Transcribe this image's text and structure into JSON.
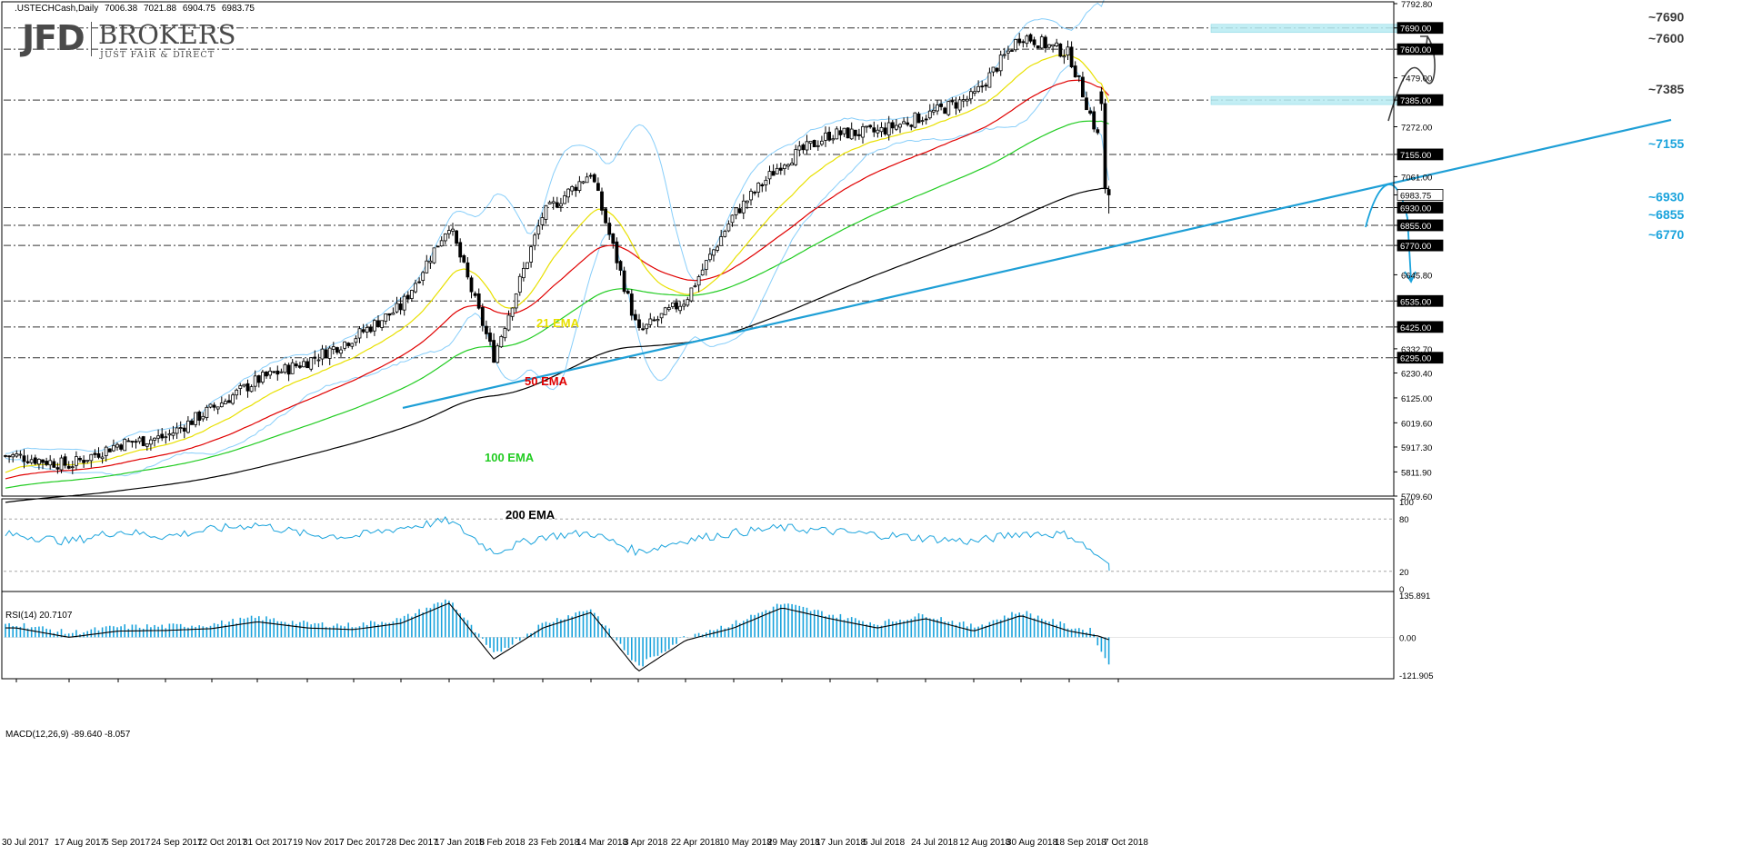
{
  "header": {
    "symbol": ".USTECHCash,Daily",
    "open": "7006.38",
    "high": "7021.88",
    "low": "6904.75",
    "close": "6983.75"
  },
  "logo": {
    "brand": "JFD",
    "brokers": "BROKERS",
    "tagline": "JUST FAIR & DIRECT"
  },
  "colors": {
    "ema21": "#e8e000",
    "ema50": "#e00000",
    "ema100": "#22cc22",
    "ema200": "#000000",
    "bollinger": "#87cefa",
    "trendline": "#1e9fd6",
    "cyan_label": "#1aa3dc",
    "box": "#b8ecf3"
  },
  "chart_data": [
    {
      "type": "candlestick",
      "title": ".USTECHCash,Daily",
      "ylim": [
        5709.6,
        7792.8
      ],
      "y_ticks": [
        "7792.80",
        "7690.00",
        "7600.00",
        "7479.00",
        "7385.00",
        "7272.00",
        "7155.00",
        "7061.00",
        "6983.75",
        "6930.00",
        "6855.00",
        "6770.00",
        "6645.80",
        "6535.00",
        "6425.00",
        "6332.70",
        "6295.00",
        "6230.40",
        "6125.00",
        "6019.60",
        "5917.30",
        "5811.90",
        "5709.60"
      ],
      "x_ticks": [
        "30 Jul 2017",
        "17 Aug 2017",
        "5 Sep 2017",
        "24 Sep 2017",
        "12 Oct 2017",
        "31 Oct 2017",
        "19 Nov 2017",
        "7 Dec 2017",
        "28 Dec 2017",
        "17 Jan 2018",
        "5 Feb 2018",
        "23 Feb 2018",
        "14 Mar 2018",
        "3 Apr 2018",
        "22 Apr 2018",
        "10 May 2018",
        "29 May 2018",
        "17 Jun 2018",
        "5 Jul 2018",
        "24 Jul 2018",
        "12 Aug 2018",
        "30 Aug 2018",
        "18 Sep 2018",
        "7 Oct 2018"
      ],
      "price_path": [
        [
          "30 Jul 2017",
          5880
        ],
        [
          "17 Aug 2017",
          5840
        ],
        [
          "5 Sep 2017",
          5930
        ],
        [
          "24 Sep 2017",
          5960
        ],
        [
          "12 Oct 2017",
          6080
        ],
        [
          "31 Oct 2017",
          6200
        ],
        [
          "19 Nov 2017",
          6280
        ],
        [
          "7 Dec 2017",
          6380
        ],
        [
          "28 Dec 2017",
          6510
        ],
        [
          "17 Jan 2018",
          6860
        ],
        [
          "5 Feb 2018",
          6300
        ],
        [
          "23 Feb 2018",
          6900
        ],
        [
          "14 Mar 2018",
          7080
        ],
        [
          "3 Apr 2018",
          6400
        ],
        [
          "22 Apr 2018",
          6540
        ],
        [
          "10 May 2018",
          6900
        ],
        [
          "29 May 2018",
          7120
        ],
        [
          "17 Jun 2018",
          7240
        ],
        [
          "5 Jul 2018",
          7250
        ],
        [
          "24 Jul 2018",
          7320
        ],
        [
          "12 Aug 2018",
          7400
        ],
        [
          "30 Aug 2018",
          7660
        ],
        [
          "18 Sep 2018",
          7580
        ],
        [
          "7 Oct 2018",
          6983.75
        ]
      ],
      "indicators": [
        {
          "name": "21 EMA"
        },
        {
          "name": "50 EMA"
        },
        {
          "name": "100 EMA"
        },
        {
          "name": "200 EMA"
        }
      ],
      "levels": [
        {
          "label": "~7690",
          "value": 7690,
          "tag": "7690.00"
        },
        {
          "label": "~7600",
          "value": 7600,
          "tag": "7600.00"
        },
        {
          "label": "~7385",
          "value": 7385,
          "tag": "7385.00"
        },
        {
          "label": "~7155",
          "value": 7155,
          "tag": "7155.00"
        },
        {
          "label": "~6930",
          "value": 6930,
          "tag": "6930.00"
        },
        {
          "label": "~6855",
          "value": 6855,
          "tag": "6855.00"
        },
        {
          "label": "~6770",
          "value": 6770,
          "tag": "6770.00"
        },
        {
          "label": "",
          "value": 6535,
          "tag": "6535.00"
        },
        {
          "label": "",
          "value": 6425,
          "tag": "6425.00"
        },
        {
          "label": "",
          "value": 6295,
          "tag": "6295.00"
        }
      ],
      "current_price": "6983.75",
      "uptrend_line": {
        "from": [
          "5 Feb 2018",
          6170
        ],
        "to": [
          "7 Oct 2018",
          6770
        ]
      },
      "resistance_zones": [
        7690,
        7385
      ],
      "scenarios": [
        "rebound toward ~7690",
        "drop toward ~6855"
      ]
    },
    {
      "type": "line",
      "title": "RSI(14) 20.7107",
      "ylim": [
        0,
        100
      ],
      "y_ticks": [
        "100",
        "80",
        "20",
        "0"
      ],
      "reference_lines": [
        80,
        20
      ],
      "last_value": 20.7107,
      "path": [
        [
          "30 Jul 2017",
          62
        ],
        [
          "17 Aug 2017",
          54
        ],
        [
          "5 Sep 2017",
          66
        ],
        [
          "24 Sep 2017",
          60
        ],
        [
          "12 Oct 2017",
          68
        ],
        [
          "31 Oct 2017",
          74
        ],
        [
          "19 Nov 2017",
          62
        ],
        [
          "7 Dec 2017",
          60
        ],
        [
          "28 Dec 2017",
          70
        ],
        [
          "17 Jan 2018",
          78
        ],
        [
          "5 Feb 2018",
          42
        ],
        [
          "23 Feb 2018",
          60
        ],
        [
          "14 Mar 2018",
          64
        ],
        [
          "3 Apr 2018",
          42
        ],
        [
          "22 Apr 2018",
          56
        ],
        [
          "10 May 2018",
          64
        ],
        [
          "29 May 2018",
          70
        ],
        [
          "17 Jun 2018",
          66
        ],
        [
          "5 Jul 2018",
          62
        ],
        [
          "24 Jul 2018",
          58
        ],
        [
          "12 Aug 2018",
          54
        ],
        [
          "30 Aug 2018",
          64
        ],
        [
          "18 Sep 2018",
          62
        ],
        [
          "7 Oct 2018",
          20.7
        ]
      ]
    },
    {
      "type": "bar",
      "title": "MACD(12,26,9) -89.640 -8.057",
      "ylim": [
        -121.905,
        135.891
      ],
      "y_ticks": [
        "135.891",
        "0.00",
        "-121.905"
      ],
      "last_values": {
        "macd": -89.64,
        "signal": -8.057
      },
      "signal_path": [
        [
          "30 Jul 2017",
          30
        ],
        [
          "17 Aug 2017",
          0
        ],
        [
          "5 Sep 2017",
          20
        ],
        [
          "24 Sep 2017",
          22
        ],
        [
          "12 Oct 2017",
          28
        ],
        [
          "31 Oct 2017",
          50
        ],
        [
          "19 Nov 2017",
          30
        ],
        [
          "7 Dec 2017",
          25
        ],
        [
          "28 Dec 2017",
          45
        ],
        [
          "17 Jan 2018",
          110
        ],
        [
          "5 Feb 2018",
          -70
        ],
        [
          "23 Feb 2018",
          30
        ],
        [
          "14 Mar 2018",
          80
        ],
        [
          "3 Apr 2018",
          -110
        ],
        [
          "22 Apr 2018",
          -10
        ],
        [
          "10 May 2018",
          30
        ],
        [
          "29 May 2018",
          95
        ],
        [
          "17 Jun 2018",
          60
        ],
        [
          "5 Jul 2018",
          30
        ],
        [
          "24 Jul 2018",
          60
        ],
        [
          "12 Aug 2018",
          20
        ],
        [
          "30 Aug 2018",
          70
        ],
        [
          "18 Sep 2018",
          20
        ],
        [
          "7 Oct 2018",
          -8
        ]
      ]
    }
  ]
}
